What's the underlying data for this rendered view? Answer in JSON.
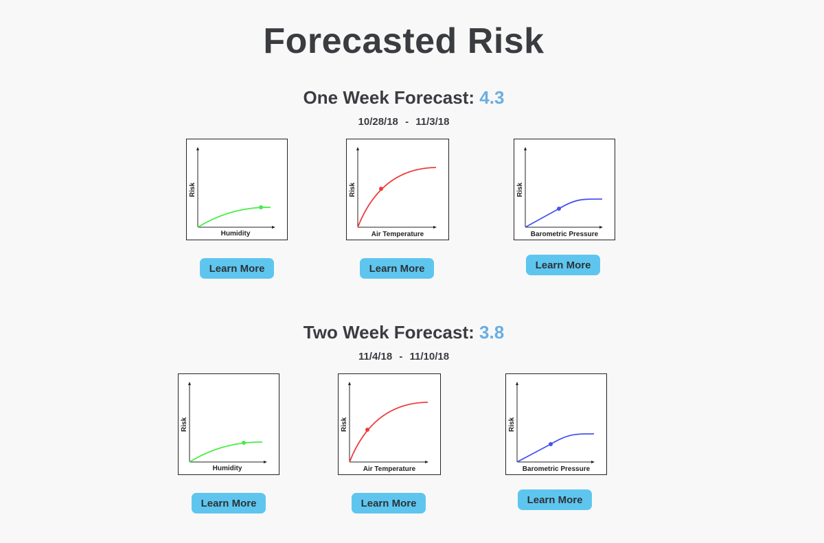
{
  "page": {
    "title": "Forecasted Risk"
  },
  "forecasts": [
    {
      "label": "One Week Forecast:",
      "score": "4.3",
      "date_start": "10/28/18",
      "date_sep": "-",
      "date_end": "11/3/18",
      "charts": [
        {
          "xlabel": "Humidity",
          "ylabel": "Risk",
          "color": "#44ee44",
          "button": "Learn More"
        },
        {
          "xlabel": "Air Temperature",
          "ylabel": "Risk",
          "color": "#ee3b3b",
          "button": "Learn More"
        },
        {
          "xlabel": "Barometric Pressure",
          "ylabel": "Risk",
          "color": "#4455ee",
          "button": "Learn More"
        }
      ]
    },
    {
      "label": "Two Week Forecast:",
      "score": "3.8",
      "date_start": "11/4/18",
      "date_sep": "-",
      "date_end": "11/10/18",
      "charts": [
        {
          "xlabel": "Humidity",
          "ylabel": "Risk",
          "color": "#44ee44",
          "button": "Learn More"
        },
        {
          "xlabel": "Air Temperature",
          "ylabel": "Risk",
          "color": "#ee3b3b",
          "button": "Learn More"
        },
        {
          "xlabel": "Barometric Pressure",
          "ylabel": "Risk",
          "color": "#4455ee",
          "button": "Learn More"
        }
      ]
    }
  ]
}
